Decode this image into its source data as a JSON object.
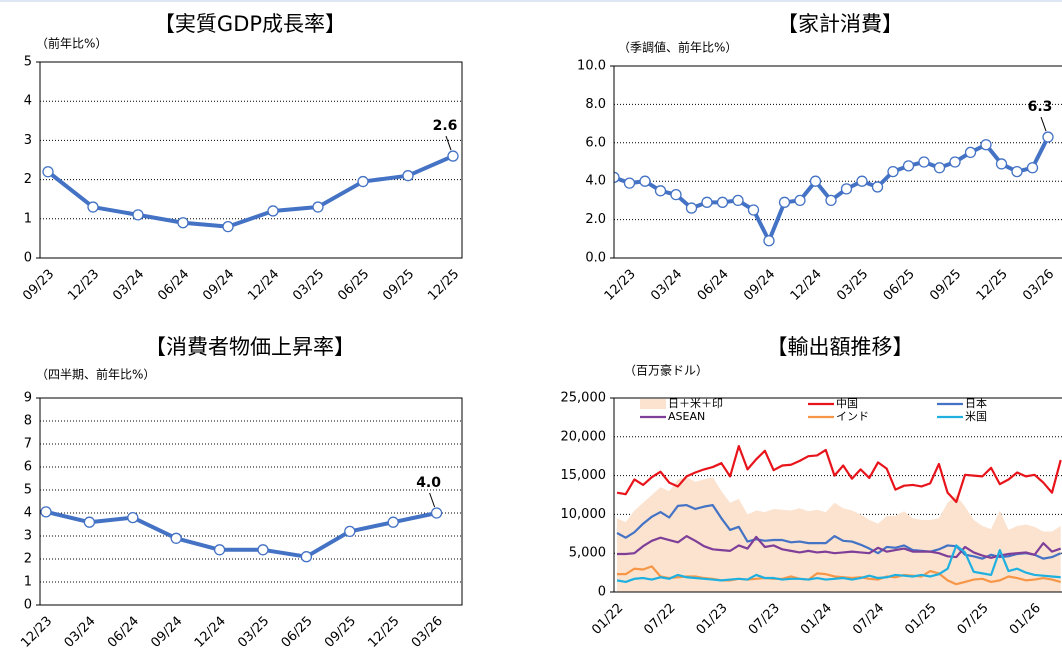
{
  "chart_data": [
    {
      "type": "line",
      "title": "【実質GDP成長率】",
      "y_label": "（前年比%）",
      "categories": [
        "09/23",
        "12/23",
        "03/24",
        "06/24",
        "09/24",
        "12/24",
        "03/25",
        "06/25",
        "09/25",
        "12/25"
      ],
      "values": [
        2.2,
        1.3,
        1.1,
        0.9,
        0.8,
        1.2,
        1.3,
        1.95,
        2.1,
        2.6
      ],
      "value_labels": [
        null,
        null,
        null,
        null,
        null,
        null,
        null,
        null,
        null,
        "2.6"
      ],
      "color": "#4472c4",
      "markers": true,
      "grid": true,
      "ylim": [
        0,
        5
      ],
      "yticks": [
        0,
        1,
        2,
        3,
        4,
        5
      ]
    },
    {
      "type": "line",
      "title": "【家計消費】",
      "y_label": "（季調値、前年比%）",
      "categories": [
        null,
        "12/23",
        null,
        null,
        "03/24",
        null,
        null,
        "06/24",
        null,
        null,
        "09/24",
        null,
        null,
        "12/24",
        null,
        null,
        "03/25",
        null,
        null,
        "06/25",
        null,
        null,
        "09/25",
        null,
        null,
        "12/25",
        null,
        null,
        "03/26"
      ],
      "values": [
        4.2,
        3.9,
        4.0,
        3.5,
        3.3,
        2.6,
        2.9,
        2.9,
        3.0,
        2.5,
        0.9,
        2.9,
        3.0,
        4.0,
        3.0,
        3.6,
        4.0,
        3.7,
        4.5,
        4.8,
        5.0,
        4.7,
        5.0,
        5.5,
        5.9,
        4.9,
        4.5,
        4.7,
        6.3
      ],
      "value_labels": [
        null,
        null,
        null,
        null,
        null,
        null,
        null,
        null,
        null,
        null,
        null,
        null,
        null,
        null,
        null,
        null,
        null,
        null,
        null,
        null,
        null,
        null,
        null,
        null,
        null,
        null,
        null,
        null,
        "6.3"
      ],
      "color": "#4472c4",
      "markers": true,
      "grid": true,
      "ylim": [
        0,
        10
      ],
      "yticks": [
        {
          "value": 0,
          "label": "0.0"
        },
        {
          "value": 2,
          "label": "2.0"
        },
        {
          "value": 4,
          "label": "4.0"
        },
        {
          "value": 6,
          "label": "6.0"
        },
        {
          "value": 8,
          "label": "8.0"
        },
        {
          "value": 10,
          "label": "10.0"
        }
      ]
    },
    {
      "type": "line",
      "title": "【消費者物価上昇率】",
      "y_label": "（四半期、前年比%）",
      "categories": [
        "12/23",
        "03/24",
        "06/24",
        "09/24",
        "12/24",
        "03/25",
        "06/25",
        "09/25",
        "12/25",
        "03/26"
      ],
      "values": [
        4.05,
        3.6,
        3.8,
        2.9,
        2.4,
        2.4,
        2.1,
        3.2,
        3.6,
        4.0
      ],
      "value_labels": [
        null,
        null,
        null,
        null,
        null,
        null,
        null,
        null,
        null,
        "4.0"
      ],
      "color": "#4472c4",
      "markers": true,
      "grid": true,
      "ylim": [
        0,
        9
      ],
      "yticks": [
        0,
        1,
        2,
        3,
        4,
        5,
        6,
        7,
        8,
        9
      ]
    },
    {
      "type": "line",
      "title": "【輸出額推移】",
      "y_label": "（百万豪ドル）",
      "categories": [
        "01/22",
        null,
        null,
        null,
        null,
        null,
        "07/22",
        null,
        null,
        null,
        null,
        null,
        "01/23",
        null,
        null,
        null,
        null,
        null,
        "07/23",
        null,
        null,
        null,
        null,
        null,
        "01/24",
        null,
        null,
        null,
        null,
        null,
        "07/24",
        null,
        null,
        null,
        null,
        null,
        "01/25",
        null,
        null,
        null,
        null,
        null,
        "07/25",
        null,
        null,
        null,
        null,
        null,
        "01/26",
        null,
        null,
        null
      ],
      "series": [
        {
          "name": "日＋米＋印",
          "color": "#fbe3d0",
          "area": true,
          "values": [
            9500,
            9000,
            10500,
            11500,
            12500,
            13500,
            13000,
            14500,
            14800,
            14200,
            14500,
            14800,
            13000,
            11500,
            12000,
            10000,
            10500,
            10300,
            10700,
            10600,
            10500,
            10800,
            10400,
            10600,
            10300,
            11500,
            10800,
            10500,
            10000,
            9300,
            8800,
            9800,
            9800,
            10400,
            9500,
            9300,
            9300,
            9500,
            11500,
            12500,
            11000,
            9300,
            8500,
            8100,
            10500,
            8000,
            8500,
            8700,
            8400,
            7800,
            7800,
            8500
          ]
        },
        {
          "name": "中国",
          "color": "#e8141b",
          "values": [
            12800,
            12600,
            14500,
            13800,
            14800,
            15500,
            14100,
            13600,
            14900,
            15400,
            15800,
            16100,
            16600,
            14900,
            18800,
            15800,
            17100,
            18200,
            15700,
            16300,
            16400,
            16900,
            17500,
            17600,
            18300,
            15000,
            16300,
            14600,
            15800,
            14700,
            16700,
            15900,
            13200,
            13700,
            13800,
            13600,
            14000,
            16500,
            12800,
            11600,
            15100,
            15000,
            14900,
            16000,
            13900,
            14500,
            15400,
            14900,
            15100,
            14100,
            12800,
            17000
          ]
        },
        {
          "name": "日本",
          "color": "#4472c4",
          "values": [
            7600,
            7000,
            7700,
            8800,
            9700,
            10300,
            9600,
            11100,
            11200,
            10700,
            11000,
            11200,
            9500,
            8000,
            8400,
            6500,
            6800,
            6600,
            6700,
            6700,
            6400,
            6500,
            6300,
            6300,
            6300,
            7200,
            6600,
            6500,
            6100,
            5600,
            5000,
            5800,
            5700,
            6000,
            5400,
            5300,
            5200,
            5500,
            6000,
            5900,
            4800,
            4600,
            4300,
            4800,
            4500,
            4600,
            4900,
            5000,
            4800,
            4300,
            4500,
            5000
          ]
        },
        {
          "name": "ASEAN",
          "color": "#7f3f98",
          "values": [
            4900,
            4900,
            5000,
            5900,
            6600,
            7000,
            6700,
            6400,
            7200,
            6600,
            5900,
            5500,
            5400,
            5300,
            6000,
            5600,
            7100,
            5800,
            6000,
            5500,
            5300,
            5100,
            5300,
            5100,
            5200,
            5000,
            5100,
            5200,
            5100,
            5000,
            5700,
            5200,
            5400,
            5600,
            5200,
            5200,
            5200,
            5000,
            4600,
            4500,
            5800,
            5100,
            4700,
            4400,
            4700,
            4900,
            5000,
            5100,
            4800,
            6300,
            5200,
            5600
          ]
        },
        {
          "name": "インド",
          "color": "#f79646",
          "values": [
            2300,
            2300,
            3000,
            2900,
            3300,
            2000,
            1800,
            1900,
            2000,
            2000,
            1800,
            1700,
            1500,
            1500,
            1700,
            1600,
            1700,
            1800,
            1700,
            1700,
            2000,
            1700,
            1600,
            2400,
            2300,
            2000,
            1900,
            1800,
            1900,
            1700,
            1600,
            2000,
            1900,
            2200,
            2100,
            2000,
            2700,
            2400,
            1500,
            1000,
            1300,
            1600,
            1700,
            1300,
            1500,
            2000,
            1800,
            1500,
            1600,
            1800,
            1600,
            1300
          ]
        },
        {
          "name": "米国",
          "color": "#1fb0e0",
          "values": [
            1500,
            1300,
            1700,
            1800,
            1600,
            1900,
            1700,
            2200,
            1900,
            1800,
            1700,
            1600,
            1500,
            1600,
            1700,
            1600,
            2200,
            1800,
            1800,
            1600,
            1700,
            1700,
            1600,
            1800,
            1600,
            1700,
            1800,
            1600,
            1800,
            2100,
            1800,
            1900,
            2200,
            2100,
            2000,
            2200,
            2000,
            2300,
            3000,
            6000,
            5100,
            2600,
            2400,
            2200,
            5400,
            2700,
            3000,
            2500,
            2200,
            2100,
            2000,
            1900
          ]
        }
      ],
      "grid": true,
      "ylim": [
        0,
        25000
      ],
      "yticks": [
        0,
        {
          "value": 5000,
          "label": "5,000"
        },
        {
          "value": 10000,
          "label": "10,000"
        },
        {
          "value": 15000,
          "label": "15,000"
        },
        {
          "value": 20000,
          "label": "20,000"
        },
        {
          "value": 25000,
          "label": "25,000"
        }
      ]
    }
  ]
}
